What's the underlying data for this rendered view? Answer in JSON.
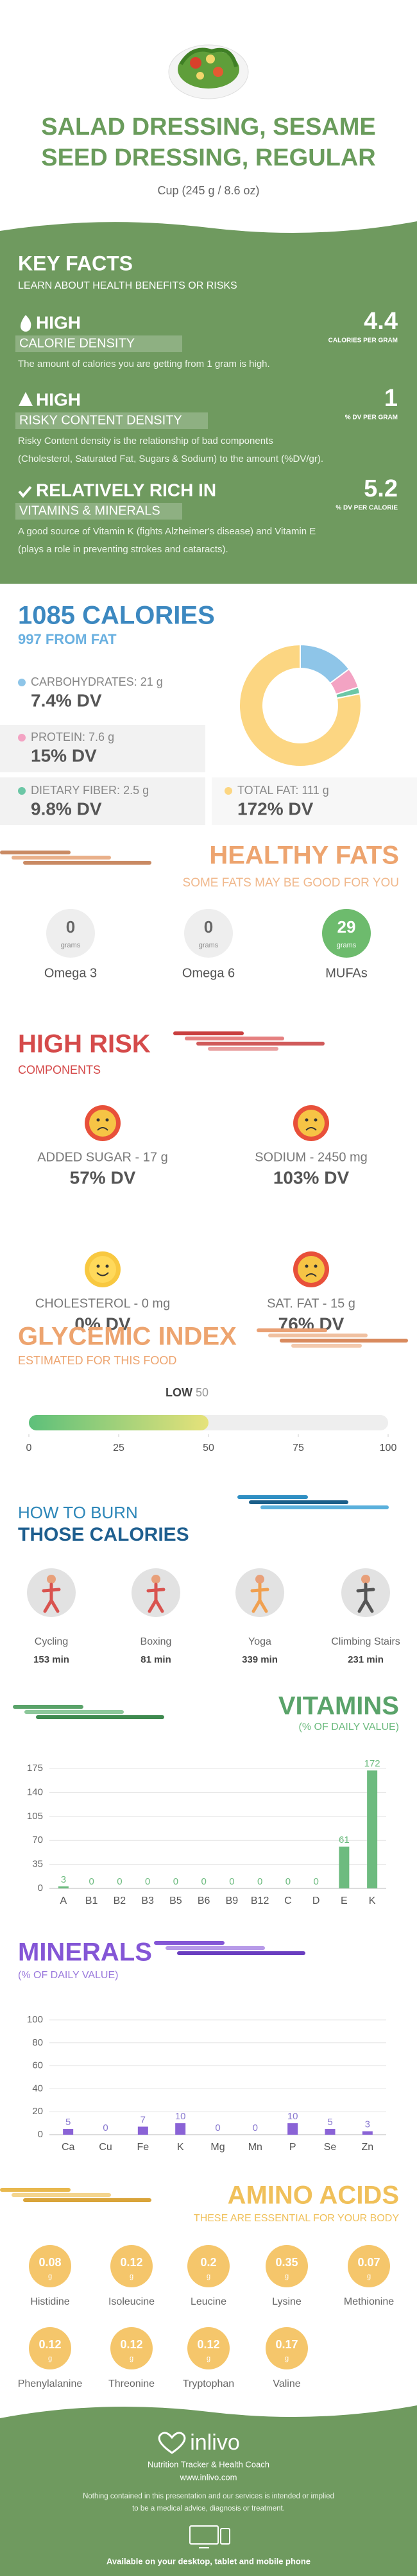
{
  "header": {
    "title": [
      "SALAD DRESSING, SESAME",
      "SEED DRESSING, REGULAR"
    ],
    "serving": "Cup (245 g / 8.6 oz)"
  },
  "key_facts": {
    "title": "KEY FACTS",
    "subtitle": "LEARN ABOUT HEALTH BENEFITS OR RISKS",
    "items": [
      {
        "level": "HIGH",
        "name": "CALORIE DENSITY",
        "value": 4.4,
        "unit": "CALORIES PER GRAM",
        "description": [
          "The amount of calories you are getting from 1 gram is high."
        ]
      },
      {
        "level": "HIGH",
        "name": "RISKY CONTENT DENSITY",
        "value": 1,
        "unit": "% DV PER GRAM",
        "description": [
          "Risky Content density is the relationship of bad components",
          "(Cholesterol, Saturated Fat, Sugars & Sodium) to the amount (%DV/gr)."
        ]
      },
      {
        "level": "RELATIVELY RICH  IN",
        "name": "VITAMINS & MINERALS",
        "value": 5.2,
        "unit": "% DV PER CALORIE",
        "description": [
          "A good source of Vitamin K (fights Alzheimer's disease) and Vitamin E",
          "(plays a role in preventing strokes and cataracts)."
        ]
      }
    ]
  },
  "calories": {
    "title": "1085 CALORIES",
    "subtitle": "997 FROM FAT",
    "nutrients": [
      {
        "label": "CARBOHYDRATES:",
        "grams": 21,
        "unit": "g",
        "dv": "7.4% DV",
        "color": "#8ec5e8"
      },
      {
        "label": "PROTEIN:",
        "grams": 7.6,
        "unit": "g",
        "dv": "15% DV",
        "color": "#f3a3c3"
      },
      {
        "label": "DIETARY FIBER:",
        "grams": 2.5,
        "unit": "g",
        "dv": "9.8% DV",
        "color": "#6cc7a6"
      },
      {
        "label": "TOTAL FAT:",
        "grams": 111,
        "unit": "g",
        "dv": "172% DV",
        "color": "#fcd682"
      }
    ]
  },
  "healthy_fats": {
    "title": "HEALTHY FATS",
    "subtitle": "SOME FATS MAY BE GOOD FOR YOU",
    "items": [
      {
        "value": 0,
        "unit": "grams",
        "name": "Omega 3"
      },
      {
        "value": 0,
        "unit": "grams",
        "name": "Omega 6"
      },
      {
        "value": 29,
        "unit": "grams",
        "name": "MUFAs"
      }
    ]
  },
  "high_risk": {
    "title": "HIGH RISK",
    "subtitle": "COMPONENTS",
    "items": [
      {
        "name": "ADDED SUGAR - 17 g",
        "dv": "57% DV"
      },
      {
        "name": "SODIUM - 2450 mg",
        "dv": "103% DV"
      },
      {
        "name": "CHOLESTEROL - 0 mg",
        "dv": "0% DV"
      },
      {
        "name": "SAT. FAT - 15 g",
        "dv": "76% DV"
      }
    ]
  },
  "glycemic": {
    "title": "GLYCEMIC INDEX",
    "subtitle": "ESTIMATED FOR THIS FOOD",
    "level": "LOW",
    "value": 50,
    "range": [
      0,
      100
    ],
    "ticks": [
      0,
      25,
      50,
      75,
      100
    ]
  },
  "burn": {
    "title": [
      "HOW TO BURN",
      "THOSE CALORIES"
    ],
    "activities": [
      {
        "name": "Cycling",
        "time": "153 min"
      },
      {
        "name": "Boxing",
        "time": "81 min"
      },
      {
        "name": "Yoga",
        "time": "339 min"
      },
      {
        "name": "Climbing Stairs",
        "time": "231 min"
      }
    ]
  },
  "vitamins": {
    "title": "VITAMINS",
    "subtitle": "(% OF DAILY VALUE)",
    "categories": [
      "A",
      "B1",
      "B2",
      "B3",
      "B5",
      "B6",
      "B9",
      "B12",
      "C",
      "D",
      "E",
      "K"
    ],
    "values": [
      3,
      0,
      0,
      0,
      0,
      0,
      0,
      0,
      0,
      0,
      61,
      172
    ],
    "ylim": [
      0,
      175
    ],
    "yticks": [
      0,
      35,
      70,
      105,
      140,
      175
    ],
    "color": "#6dbb7f"
  },
  "minerals": {
    "title": "MINERALS",
    "subtitle": "(% OF DAILY VALUE)",
    "categories": [
      "Ca",
      "Cu",
      "Fe",
      "K",
      "Mg",
      "Mn",
      "P",
      "Se",
      "Zn"
    ],
    "values": [
      5,
      0,
      7,
      10,
      0,
      0,
      10,
      5,
      3
    ],
    "ylim": [
      0,
      100
    ],
    "yticks": [
      0,
      20,
      40,
      60,
      80,
      100
    ],
    "color": "#8a63d6"
  },
  "amino_acids": {
    "title": "AMINO ACIDS",
    "subtitle": "THESE ARE ESSENTIAL FOR YOUR BODY",
    "items": [
      {
        "value": 0.08,
        "unit": "g",
        "name": "Histidine"
      },
      {
        "value": 0.12,
        "unit": "g",
        "name": "Isoleucine"
      },
      {
        "value": 0.2,
        "unit": "g",
        "name": "Leucine"
      },
      {
        "value": 0.35,
        "unit": "g",
        "name": "Lysine"
      },
      {
        "value": 0.07,
        "unit": "g",
        "name": "Methionine"
      },
      {
        "value": 0.12,
        "unit": "g",
        "name": "Phenylalanine"
      },
      {
        "value": 0.12,
        "unit": "g",
        "name": "Threonine"
      },
      {
        "value": 0.12,
        "unit": "g",
        "name": "Tryptophan"
      },
      {
        "value": 0.17,
        "unit": "g",
        "name": "Valine"
      }
    ]
  },
  "footer": {
    "brand": "inlivo",
    "tagline": "Nutrition Tracker & Health Coach",
    "url": "www.inlivo.com",
    "disclaimer": [
      "Nothing contained in this presentation and our services is intended or implied",
      "to be a medical advice, diagnosis or treatment."
    ],
    "availability": "Available on your desktop, tablet and mobile phone"
  }
}
